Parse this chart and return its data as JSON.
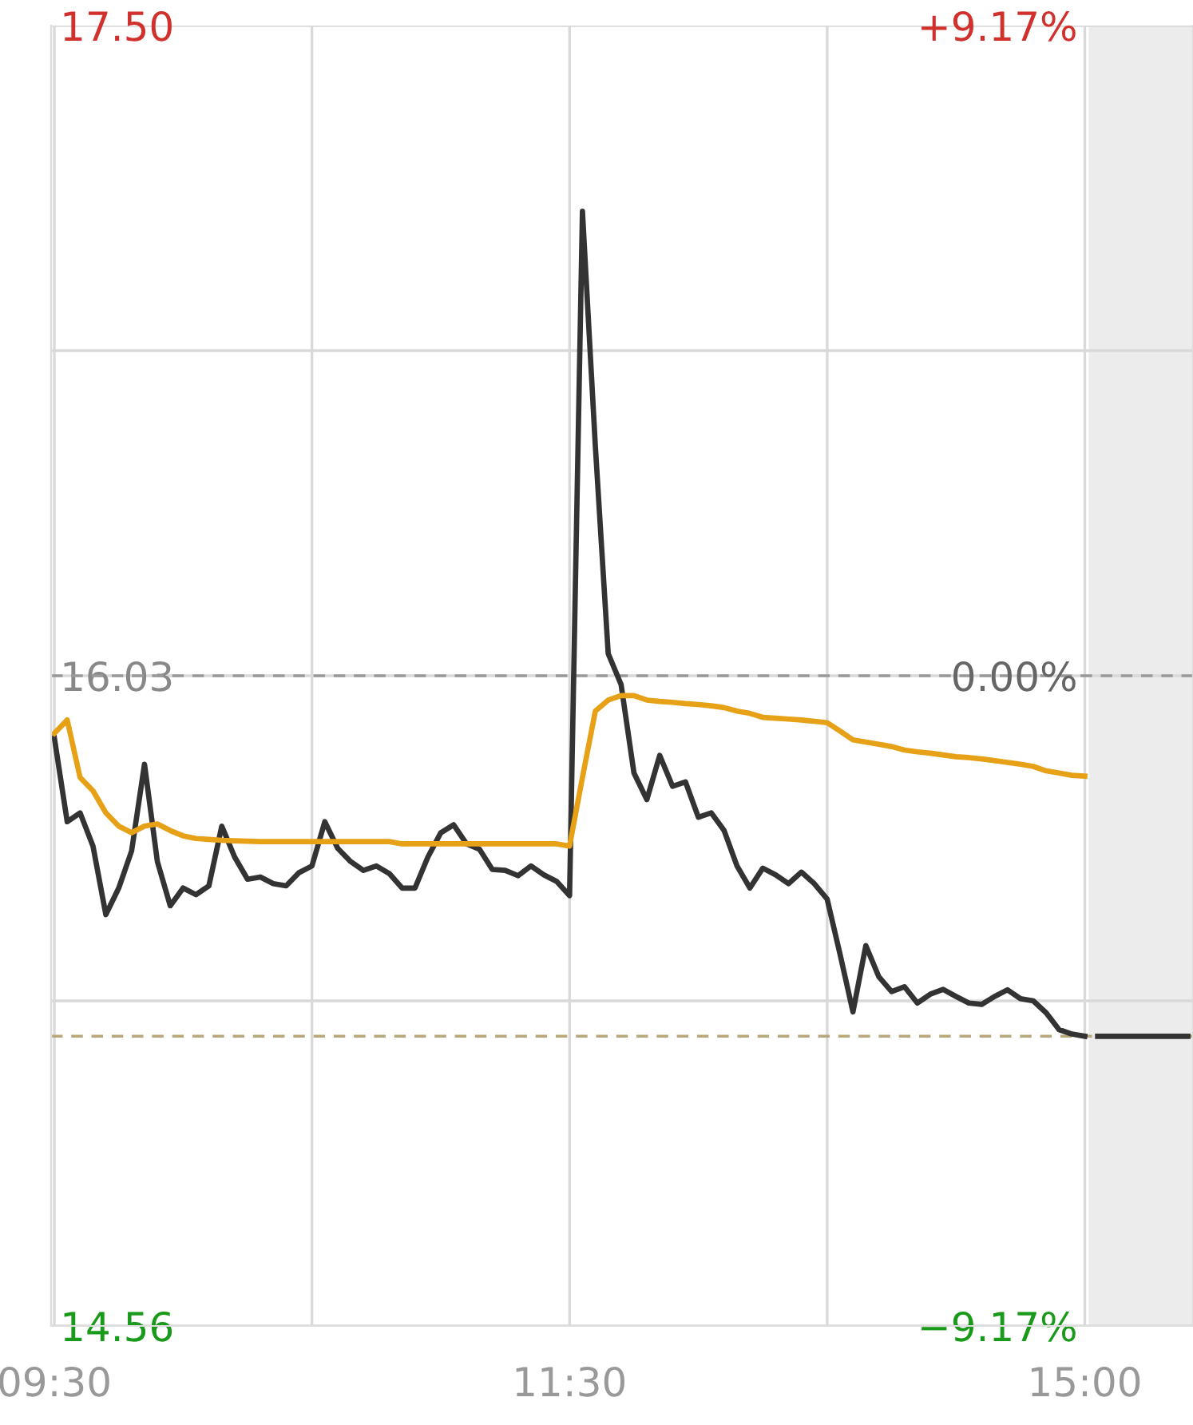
{
  "chart_data": {
    "type": "line",
    "categories": [
      "09:30",
      null,
      null,
      null,
      null,
      null,
      null,
      null,
      null,
      null,
      null,
      null,
      null,
      null,
      null,
      null,
      null,
      null,
      null,
      null,
      null,
      null,
      null,
      null,
      null,
      null,
      null,
      null,
      null,
      null,
      null,
      null,
      null,
      null,
      null,
      null,
      null,
      null,
      null,
      null,
      "11:30",
      null,
      null,
      null,
      null,
      null,
      null,
      null,
      null,
      null,
      null,
      null,
      null,
      null,
      null,
      null,
      null,
      null,
      null,
      null,
      null,
      null,
      null,
      null,
      null,
      null,
      null,
      null,
      null,
      null,
      null,
      null,
      null,
      null,
      null,
      null,
      null,
      null,
      null,
      null,
      "15:00",
      null,
      null,
      null,
      null,
      null,
      null,
      null,
      null
    ],
    "series": [
      {
        "color": "#333333",
        "values": [
          15.89,
          15.7,
          15.72,
          15.645,
          15.49,
          15.55,
          15.634,
          15.83,
          15.61,
          15.51,
          15.55,
          15.535,
          15.555,
          15.69,
          15.62,
          15.57,
          15.575,
          15.56,
          15.555,
          15.585,
          15.6,
          15.7,
          15.64,
          15.61,
          15.59,
          15.6,
          15.583,
          15.55,
          15.55,
          15.62,
          15.675,
          15.693,
          15.65,
          15.638,
          15.592,
          15.59,
          15.578,
          15.6,
          15.58,
          15.565,
          15.533,
          17.08,
          16.55,
          16.08,
          16.01,
          15.81,
          15.75,
          15.85,
          15.78,
          15.79,
          15.71,
          15.72,
          15.68,
          15.6,
          15.55,
          15.595,
          15.58,
          15.56,
          15.586,
          15.56,
          15.525,
          15.4,
          15.27,
          15.42,
          15.35,
          15.316,
          15.327,
          15.29,
          15.31,
          15.321,
          15.305,
          15.29,
          15.287,
          15.305,
          15.32,
          15.3,
          15.295,
          15.268,
          15.23,
          15.22,
          15.215,
          null,
          null,
          null,
          null,
          null,
          null,
          null,
          null
        ]
      },
      {
        "color": "#e6a117",
        "values": [
          15.9,
          15.93,
          15.8,
          15.77,
          15.72,
          15.69,
          15.675,
          15.69,
          15.695,
          15.68,
          15.668,
          15.662,
          15.66,
          15.658,
          15.657,
          15.656,
          15.655,
          15.655,
          15.655,
          15.655,
          15.655,
          15.655,
          15.655,
          15.655,
          15.655,
          15.655,
          15.655,
          15.65,
          15.65,
          15.65,
          15.65,
          15.65,
          15.65,
          15.65,
          15.65,
          15.65,
          15.65,
          15.65,
          15.65,
          15.65,
          15.645,
          15.8,
          15.95,
          15.975,
          15.985,
          15.985,
          15.975,
          15.972,
          15.97,
          15.967,
          15.965,
          15.962,
          15.958,
          15.95,
          15.945,
          15.936,
          15.934,
          15.932,
          15.93,
          15.927,
          15.924,
          15.905,
          15.885,
          15.88,
          15.875,
          15.87,
          15.862,
          15.858,
          15.855,
          15.851,
          15.847,
          15.845,
          15.842,
          15.838,
          15.834,
          15.83,
          15.825,
          15.815,
          15.81,
          15.805,
          15.803,
          null,
          null,
          null,
          null,
          null,
          null,
          null,
          null
        ]
      },
      {
        "color": "#333333",
        "values": [
          null,
          null,
          null,
          null,
          null,
          null,
          null,
          null,
          null,
          null,
          null,
          null,
          null,
          null,
          null,
          null,
          null,
          null,
          null,
          null,
          null,
          null,
          null,
          null,
          null,
          null,
          null,
          null,
          null,
          null,
          null,
          null,
          null,
          null,
          null,
          null,
          null,
          null,
          null,
          null,
          null,
          null,
          null,
          null,
          null,
          null,
          null,
          null,
          null,
          null,
          null,
          null,
          null,
          null,
          null,
          null,
          null,
          null,
          null,
          null,
          null,
          null,
          null,
          null,
          null,
          null,
          null,
          null,
          null,
          null,
          null,
          null,
          null,
          null,
          null,
          null,
          null,
          null,
          null,
          null,
          null,
          15.215,
          15.215,
          15.215,
          15.215,
          15.215,
          15.215,
          15.215,
          15.215
        ]
      }
    ],
    "ylim": [
      14.56,
      17.5
    ],
    "yticks": [
      {
        "value": 14.56,
        "label": "14.56"
      },
      {
        "value": 15.295,
        "label": null
      },
      {
        "value": 16.03,
        "label": "16.03"
      },
      {
        "value": 16.765,
        "label": null
      },
      {
        "value": 17.5,
        "label": "17.50"
      }
    ],
    "y2lim": [
      -9.17,
      9.17
    ],
    "y2ticks": [
      {
        "value": -9.17,
        "label": "−9.17%"
      },
      {
        "value": 0,
        "label": "0.00%"
      },
      {
        "value": 9.17,
        "label": "+9.17%"
      }
    ],
    "ref_lines": [
      {
        "axis": "y",
        "value": 16.03,
        "color": "#999999",
        "line_style": "dashed"
      },
      {
        "axis": "y",
        "value": 15.215,
        "color": "#b8a77a",
        "line_style": "dashed"
      }
    ],
    "grid": true,
    "legend": false,
    "marker": "none",
    "line_style": "solid"
  }
}
